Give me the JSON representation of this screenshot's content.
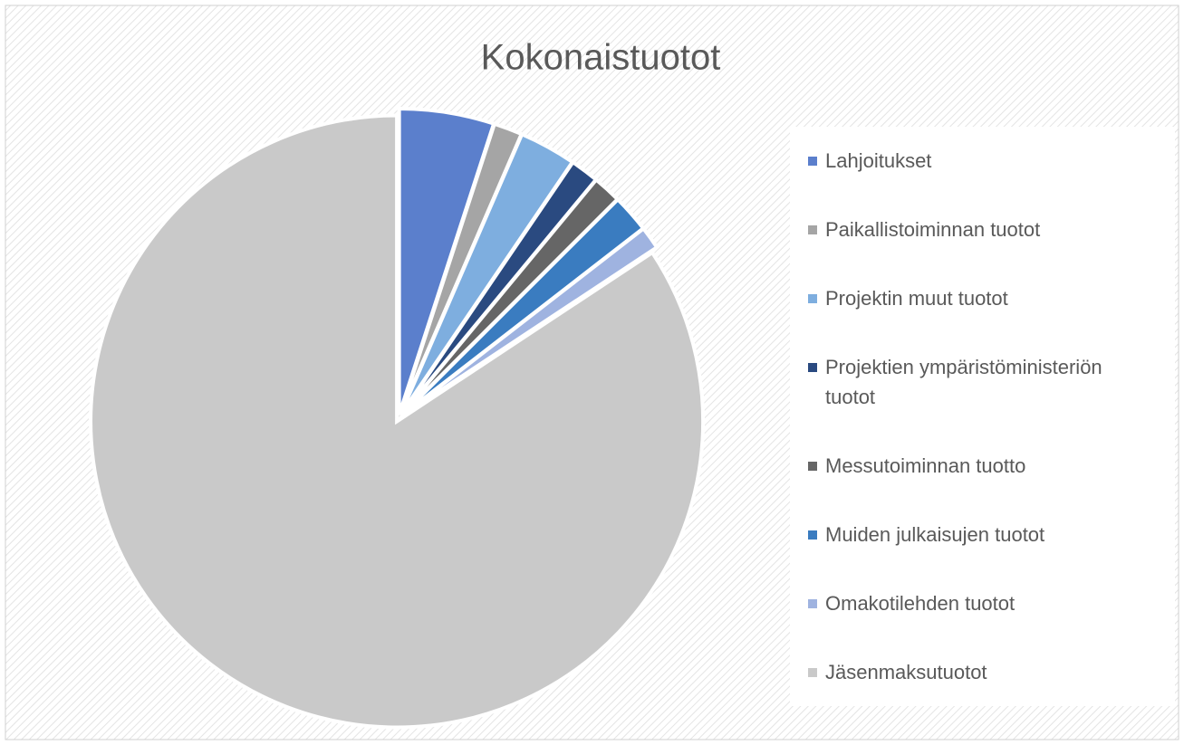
{
  "chart_data": {
    "type": "pie",
    "title": "Kokonaistuotot",
    "categories": [
      "Lahjoitukset",
      "Paikallistoiminnan tuotot",
      "Projektin muut tuotot",
      "Projektien ympäristöministeriön tuotot",
      "Messutoiminnan tuotto",
      "Muiden julkaisujen tuotot",
      "Omakotilehden tuotot",
      "Jäsenmaksutuotot"
    ],
    "values": [
      5,
      1.5,
      3,
      1.5,
      1.5,
      2,
      1.2,
      84.3
    ],
    "colors": [
      "#5b7fcc",
      "#a5a5a5",
      "#7eaedf",
      "#2a4a80",
      "#666666",
      "#3a7cc0",
      "#9fb3e0",
      "#c9c9c9"
    ],
    "legend": "right"
  }
}
